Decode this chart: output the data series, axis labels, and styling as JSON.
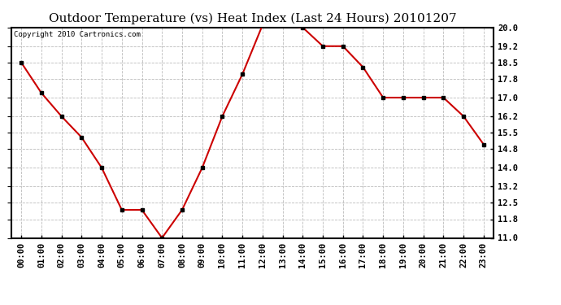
{
  "title": "Outdoor Temperature (vs) Heat Index (Last 24 Hours) 20101207",
  "copyright_text": "Copyright 2010 Cartronics.com",
  "x_labels": [
    "00:00",
    "01:00",
    "02:00",
    "03:00",
    "04:00",
    "05:00",
    "06:00",
    "07:00",
    "08:00",
    "09:00",
    "10:00",
    "11:00",
    "12:00",
    "13:00",
    "14:00",
    "15:00",
    "16:00",
    "17:00",
    "18:00",
    "19:00",
    "20:00",
    "21:00",
    "22:00",
    "23:00"
  ],
  "y_values": [
    18.5,
    17.2,
    16.2,
    15.3,
    14.0,
    12.2,
    12.2,
    11.0,
    12.2,
    14.0,
    16.2,
    18.0,
    20.1,
    20.1,
    20.0,
    19.2,
    19.2,
    18.3,
    17.0,
    17.0,
    17.0,
    17.0,
    16.2,
    15.0
  ],
  "line_color": "#cc0000",
  "marker_color": "#000000",
  "background_color": "#ffffff",
  "grid_color": "#bbbbbb",
  "ylim_min": 11.0,
  "ylim_max": 20.0,
  "ytick_values": [
    11.0,
    11.8,
    12.5,
    13.2,
    14.0,
    14.8,
    15.5,
    16.2,
    17.0,
    17.8,
    18.5,
    19.2,
    20.0
  ],
  "ytick_labels": [
    "11.0",
    "11.8",
    "12.5",
    "13.2",
    "14.0",
    "14.8",
    "15.5",
    "16.2",
    "17.0",
    "17.8",
    "18.5",
    "19.2",
    "20.0"
  ],
  "title_fontsize": 11,
  "copyright_fontsize": 6.5,
  "tick_fontsize": 7.5,
  "ylabel_fontsize": 8
}
